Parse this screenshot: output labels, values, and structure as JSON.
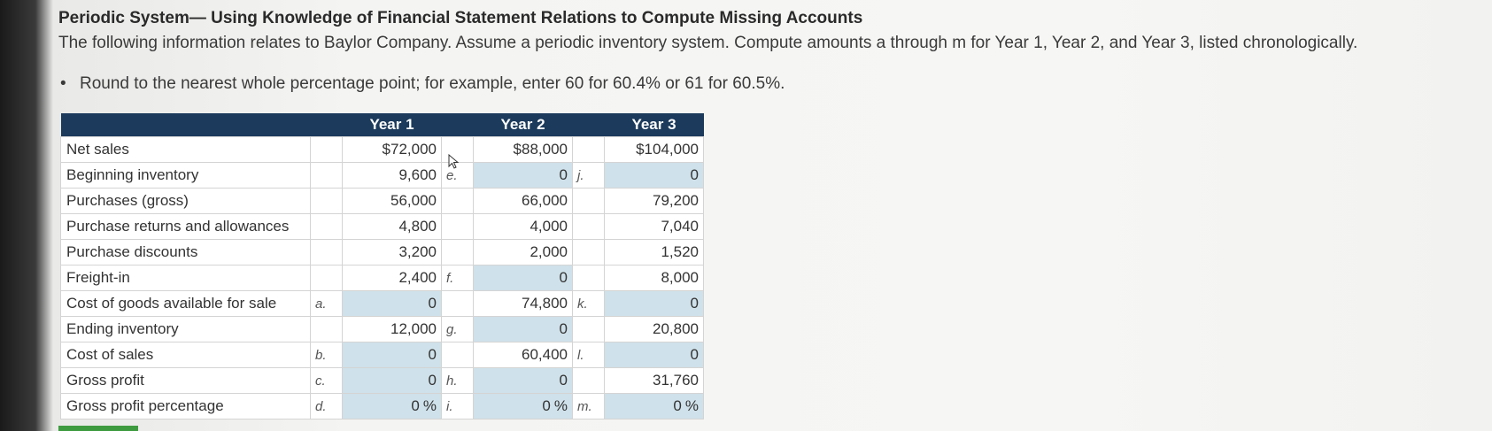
{
  "heading": "Periodic System— Using Knowledge of Financial Statement Relations to Compute Missing Accounts",
  "intro": "The following information relates to Baylor Company. Assume a periodic inventory system. Compute amounts a through m for Year 1, Year 2, and Year 3, listed chronologically.",
  "bullet": "Round to the nearest whole percentage point; for example, enter 60 for 60.4% or 61 for 60.5%.",
  "table": {
    "headers": [
      "Year 1",
      "Year 2",
      "Year 3"
    ],
    "rows": [
      {
        "label": "Net sales",
        "y1": {
          "letter": "",
          "value": "$72,000",
          "input": false
        },
        "y2": {
          "letter": "",
          "value": "$88,000",
          "input": false
        },
        "y3": {
          "letter": "",
          "value": "$104,000",
          "input": false
        }
      },
      {
        "label": "Beginning inventory",
        "y1": {
          "letter": "",
          "value": "9,600",
          "input": false
        },
        "y2": {
          "letter": "e.",
          "value": "0",
          "input": true
        },
        "y3": {
          "letter": "j.",
          "value": "0",
          "input": true
        }
      },
      {
        "label": "Purchases (gross)",
        "y1": {
          "letter": "",
          "value": "56,000",
          "input": false
        },
        "y2": {
          "letter": "",
          "value": "66,000",
          "input": false
        },
        "y3": {
          "letter": "",
          "value": "79,200",
          "input": false
        }
      },
      {
        "label": "Purchase returns and allowances",
        "y1": {
          "letter": "",
          "value": "4,800",
          "input": false
        },
        "y2": {
          "letter": "",
          "value": "4,000",
          "input": false
        },
        "y3": {
          "letter": "",
          "value": "7,040",
          "input": false
        }
      },
      {
        "label": "Purchase discounts",
        "y1": {
          "letter": "",
          "value": "3,200",
          "input": false
        },
        "y2": {
          "letter": "",
          "value": "2,000",
          "input": false
        },
        "y3": {
          "letter": "",
          "value": "1,520",
          "input": false
        }
      },
      {
        "label": "Freight-in",
        "y1": {
          "letter": "",
          "value": "2,400",
          "input": false
        },
        "y2": {
          "letter": "f.",
          "value": "0",
          "input": true
        },
        "y3": {
          "letter": "",
          "value": "8,000",
          "input": false
        }
      },
      {
        "label": "Cost of goods available for sale",
        "y1": {
          "letter": "a.",
          "value": "0",
          "input": true
        },
        "y2": {
          "letter": "",
          "value": "74,800",
          "input": false
        },
        "y3": {
          "letter": "k.",
          "value": "0",
          "input": true
        }
      },
      {
        "label": "Ending inventory",
        "y1": {
          "letter": "",
          "value": "12,000",
          "input": false
        },
        "y2": {
          "letter": "g.",
          "value": "0",
          "input": true
        },
        "y3": {
          "letter": "",
          "value": "20,800",
          "input": false
        }
      },
      {
        "label": "Cost of sales",
        "y1": {
          "letter": "b.",
          "value": "0",
          "input": true
        },
        "y2": {
          "letter": "",
          "value": "60,400",
          "input": false
        },
        "y3": {
          "letter": "l.",
          "value": "0",
          "input": true
        }
      },
      {
        "label": "Gross profit",
        "y1": {
          "letter": "c.",
          "value": "0",
          "input": true
        },
        "y2": {
          "letter": "h.",
          "value": "0",
          "input": true
        },
        "y3": {
          "letter": "",
          "value": "31,760",
          "input": false
        }
      },
      {
        "label": "Gross profit percentage",
        "y1": {
          "letter": "d.",
          "value": "0",
          "unit": "%",
          "input": true
        },
        "y2": {
          "letter": "i.",
          "value": "0",
          "unit": "%",
          "input": true
        },
        "y3": {
          "letter": "m.",
          "value": "0",
          "unit": "%",
          "input": true
        }
      }
    ]
  },
  "colors": {
    "header_bg": "#1b3a5c",
    "input_bg": "#cfe1ea",
    "submit_bar": "#3f9b3f"
  }
}
